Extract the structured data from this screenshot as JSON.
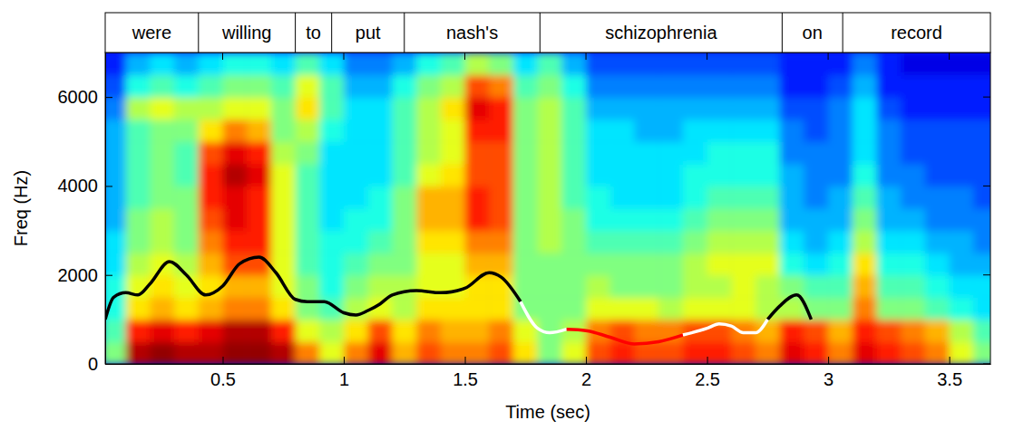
{
  "chart_data": {
    "type": "spectrogram",
    "x_label": "Time (sec)",
    "y_label": "Freq (Hz)",
    "xlim": [
      0.015,
      3.67
    ],
    "ylim": [
      0,
      7000
    ],
    "xticks": [
      0.5,
      1,
      1.5,
      2,
      2.5,
      3,
      3.5
    ],
    "yticks": [
      0,
      2000,
      4000,
      6000
    ],
    "words": [
      {
        "text": "were",
        "start": 0.015,
        "end": 0.4
      },
      {
        "text": "willing",
        "start": 0.4,
        "end": 0.8
      },
      {
        "text": "to",
        "start": 0.8,
        "end": 0.95
      },
      {
        "text": "put",
        "start": 0.95,
        "end": 1.25
      },
      {
        "text": "nash's",
        "start": 1.25,
        "end": 1.81
      },
      {
        "text": "schizophrenia",
        "start": 1.81,
        "end": 2.81
      },
      {
        "text": "on",
        "start": 2.81,
        "end": 3.06
      },
      {
        "text": "record",
        "start": 3.06,
        "end": 3.67
      }
    ],
    "time_bins": [
      0,
      0.1,
      0.2,
      0.3,
      0.4,
      0.5,
      0.6,
      0.7,
      0.8,
      0.9,
      1.0,
      1.1,
      1.2,
      1.3,
      1.4,
      1.5,
      1.6,
      1.7,
      1.8,
      1.9,
      2.0,
      2.1,
      2.2,
      2.3,
      2.4,
      2.5,
      2.6,
      2.7,
      2.8,
      2.9,
      3.0,
      3.1,
      3.2,
      3.3,
      3.4,
      3.5,
      3.6,
      3.7
    ],
    "freq_bins": [
      0,
      500,
      1000,
      1500,
      2000,
      2500,
      3000,
      3500,
      4000,
      4500,
      5000,
      5500,
      6000,
      6500,
      7000
    ],
    "color_range": [
      0,
      10
    ],
    "cells": [
      [
        5,
        9.5,
        9.8,
        9.5,
        9.5,
        9.8,
        9.8,
        9.5,
        7.5,
        6,
        7.5,
        9,
        7,
        8,
        7.5,
        7.5,
        8,
        6.5,
        5,
        6,
        8,
        8.5,
        8,
        8,
        8.5,
        8.5,
        8,
        7.5,
        9,
        8.5,
        7.5,
        9,
        8.5,
        8,
        7.5,
        6,
        5
      ],
      [
        4.5,
        8.5,
        9,
        8.5,
        9,
        9.5,
        9.5,
        8.5,
        6,
        5.5,
        6.5,
        8,
        6.5,
        7.5,
        7,
        7,
        7.5,
        6,
        5,
        5.5,
        7.5,
        8,
        7.5,
        7.5,
        8,
        8,
        7.5,
        7,
        8.5,
        8,
        7,
        8.5,
        8,
        7.5,
        7,
        5.5,
        4.5
      ],
      [
        4,
        6.5,
        7,
        6.5,
        7,
        7.5,
        7.5,
        6.5,
        5,
        4.5,
        5.5,
        6,
        5.5,
        6.5,
        6.5,
        6.5,
        6.5,
        5,
        5,
        5,
        6,
        6,
        6,
        5.5,
        6,
        6,
        6,
        5.5,
        5.5,
        5,
        5,
        7.5,
        5,
        5,
        4.5,
        4,
        3.5
      ],
      [
        4,
        6,
        6.5,
        6,
        6.5,
        7,
        7,
        6,
        5,
        4,
        5,
        5.5,
        5.5,
        6,
        6,
        6.5,
        6.5,
        5,
        5,
        5,
        5.5,
        5,
        5,
        5,
        5.5,
        5.5,
        6,
        5.5,
        5,
        4.5,
        4.5,
        7,
        4.5,
        4.5,
        4,
        3.5,
        3.5
      ],
      [
        3.5,
        5.5,
        6,
        5.5,
        7,
        8,
        8,
        6,
        4.5,
        4,
        4.5,
        5,
        5,
        6,
        6,
        7,
        7,
        5,
        5,
        5,
        5,
        5,
        5,
        5,
        5.5,
        6,
        6,
        6,
        4,
        3.5,
        4,
        6.5,
        4,
        4,
        3.5,
        3,
        3
      ],
      [
        3.5,
        5,
        5.5,
        5,
        7.5,
        8.5,
        8.5,
        6,
        4.5,
        4,
        4,
        4.5,
        5,
        6.5,
        6.5,
        7.5,
        7.5,
        5,
        5.5,
        5,
        4.5,
        4.5,
        4.5,
        4.5,
        5,
        5.5,
        5.5,
        5.5,
        3.5,
        3,
        3.5,
        5.5,
        3.5,
        3.5,
        3,
        3,
        2.5
      ],
      [
        3,
        5,
        5.5,
        5,
        8,
        9,
        8.5,
        6,
        4.5,
        3.5,
        4,
        4,
        5,
        7,
        7,
        8.5,
        8,
        5,
        5.5,
        5,
        4,
        4,
        4,
        4,
        4.5,
        5,
        5,
        5,
        3,
        3,
        3,
        5,
        3,
        3,
        2.5,
        2.5,
        2.5
      ],
      [
        3,
        4.5,
        5,
        5,
        8.5,
        9,
        8.5,
        6,
        4.5,
        3.5,
        3.5,
        4,
        5,
        7,
        7,
        8.5,
        8,
        5,
        5.5,
        4.5,
        4,
        3.5,
        3.5,
        3.5,
        4,
        4.5,
        4.5,
        4.5,
        3,
        2.5,
        3,
        4.5,
        3,
        2.5,
        2.5,
        2.5,
        2
      ],
      [
        3,
        4.5,
        5,
        4.5,
        8.5,
        9.5,
        9,
        6,
        4.5,
        3.5,
        3.5,
        3.5,
        4.5,
        6,
        6.5,
        8,
        8,
        5,
        5.5,
        4.5,
        3.5,
        3.5,
        3.5,
        3.5,
        4,
        4,
        4,
        4,
        3,
        2.5,
        2.5,
        4,
        2.5,
        2.5,
        2,
        2,
        2
      ],
      [
        3,
        4.5,
        5,
        4.5,
        8,
        9,
        8.5,
        5.5,
        5,
        3.5,
        3.5,
        3.5,
        4.5,
        5.5,
        6,
        8,
        8,
        5,
        5.5,
        4.5,
        3.5,
        3.5,
        3.5,
        3.5,
        3.5,
        4,
        4,
        4,
        2.5,
        2.5,
        2.5,
        3.5,
        2.5,
        2,
        2,
        2,
        2
      ],
      [
        3,
        4.5,
        5,
        5,
        6.5,
        7.5,
        7,
        5,
        5.5,
        4,
        3.5,
        3.5,
        4.5,
        5.5,
        6,
        8.5,
        8.5,
        5,
        5.5,
        4.5,
        3.5,
        3.5,
        3,
        3,
        3.5,
        3.5,
        3.5,
        3.5,
        2.5,
        2,
        2.5,
        3.5,
        2.5,
        2,
        2,
        2,
        2
      ],
      [
        2.5,
        5.5,
        6,
        5.5,
        5.5,
        6,
        6,
        5,
        6.5,
        4.5,
        3.5,
        3.5,
        4.5,
        5.5,
        6.5,
        9,
        8.5,
        5,
        5.5,
        4.5,
        3,
        3,
        3,
        3,
        3,
        3,
        3,
        3,
        2,
        2,
        2.5,
        3.5,
        2,
        1.5,
        1.5,
        1.5,
        1.5
      ],
      [
        2,
        4,
        4.5,
        4,
        4.5,
        5,
        5,
        4.5,
        6,
        4.5,
        3,
        3,
        4,
        5,
        5.5,
        8,
        7.5,
        4.5,
        5,
        4,
        2.5,
        2.5,
        2.5,
        2.5,
        2.5,
        2.5,
        2.5,
        2.5,
        1.5,
        1.5,
        2,
        3,
        1.5,
        1.5,
        1.5,
        1.5,
        1.5
      ],
      [
        1.5,
        3,
        3.5,
        3,
        3.5,
        4,
        4,
        3.5,
        4.5,
        3.5,
        2.5,
        2.5,
        3,
        4,
        4.5,
        5.5,
        5,
        3.5,
        4.5,
        3,
        2,
        2,
        2,
        2,
        2,
        2,
        2,
        2,
        1.5,
        1.5,
        1.5,
        2.5,
        1.5,
        1,
        1,
        1,
        1
      ]
    ],
    "x": [
      0.015,
      0.05,
      0.1,
      0.15,
      0.2,
      0.28,
      0.35,
      0.43,
      0.5,
      0.57,
      0.65,
      0.72,
      0.8,
      0.85,
      0.92,
      1.0,
      1.05,
      1.1,
      1.15,
      1.2,
      1.3,
      1.4,
      1.5,
      1.6,
      1.65,
      1.73,
      1.8,
      1.85,
      1.92,
      2.0,
      2.1,
      2.2,
      2.3,
      2.4,
      2.5,
      2.55,
      2.6,
      2.65,
      2.7,
      2.75,
      2.8,
      2.87,
      2.93
    ],
    "series": [
      {
        "color": "#000000",
        "values": [
          1000,
          1500,
          1600,
          1550,
          1800,
          2300,
          2000,
          1550,
          1750,
          2250,
          2400,
          2050,
          1450,
          1400,
          1400,
          1150,
          1100,
          1200,
          1350,
          1550,
          1650,
          1600,
          1700,
          2050,
          1950,
          1400,
          null,
          null,
          null,
          null,
          null,
          null,
          null,
          null,
          null,
          null,
          null,
          null,
          null,
          1000,
          1300,
          1550,
          1000
        ]
      },
      {
        "color": "#ffffff",
        "values": [
          null,
          null,
          null,
          null,
          null,
          null,
          null,
          null,
          null,
          null,
          null,
          null,
          null,
          null,
          null,
          null,
          null,
          null,
          null,
          null,
          null,
          null,
          null,
          null,
          null,
          1400,
          800,
          700,
          780,
          null,
          null,
          null,
          null,
          650,
          800,
          900,
          850,
          700,
          700,
          1000,
          null,
          null,
          null
        ]
      },
      {
        "color": "#ff0000",
        "values": [
          null,
          null,
          null,
          null,
          null,
          null,
          null,
          null,
          null,
          null,
          null,
          null,
          null,
          null,
          null,
          null,
          null,
          null,
          null,
          null,
          null,
          null,
          null,
          null,
          null,
          null,
          null,
          null,
          780,
          750,
          600,
          450,
          500,
          650,
          null,
          null,
          null,
          null,
          null,
          null,
          null,
          null,
          null
        ]
      }
    ]
  }
}
